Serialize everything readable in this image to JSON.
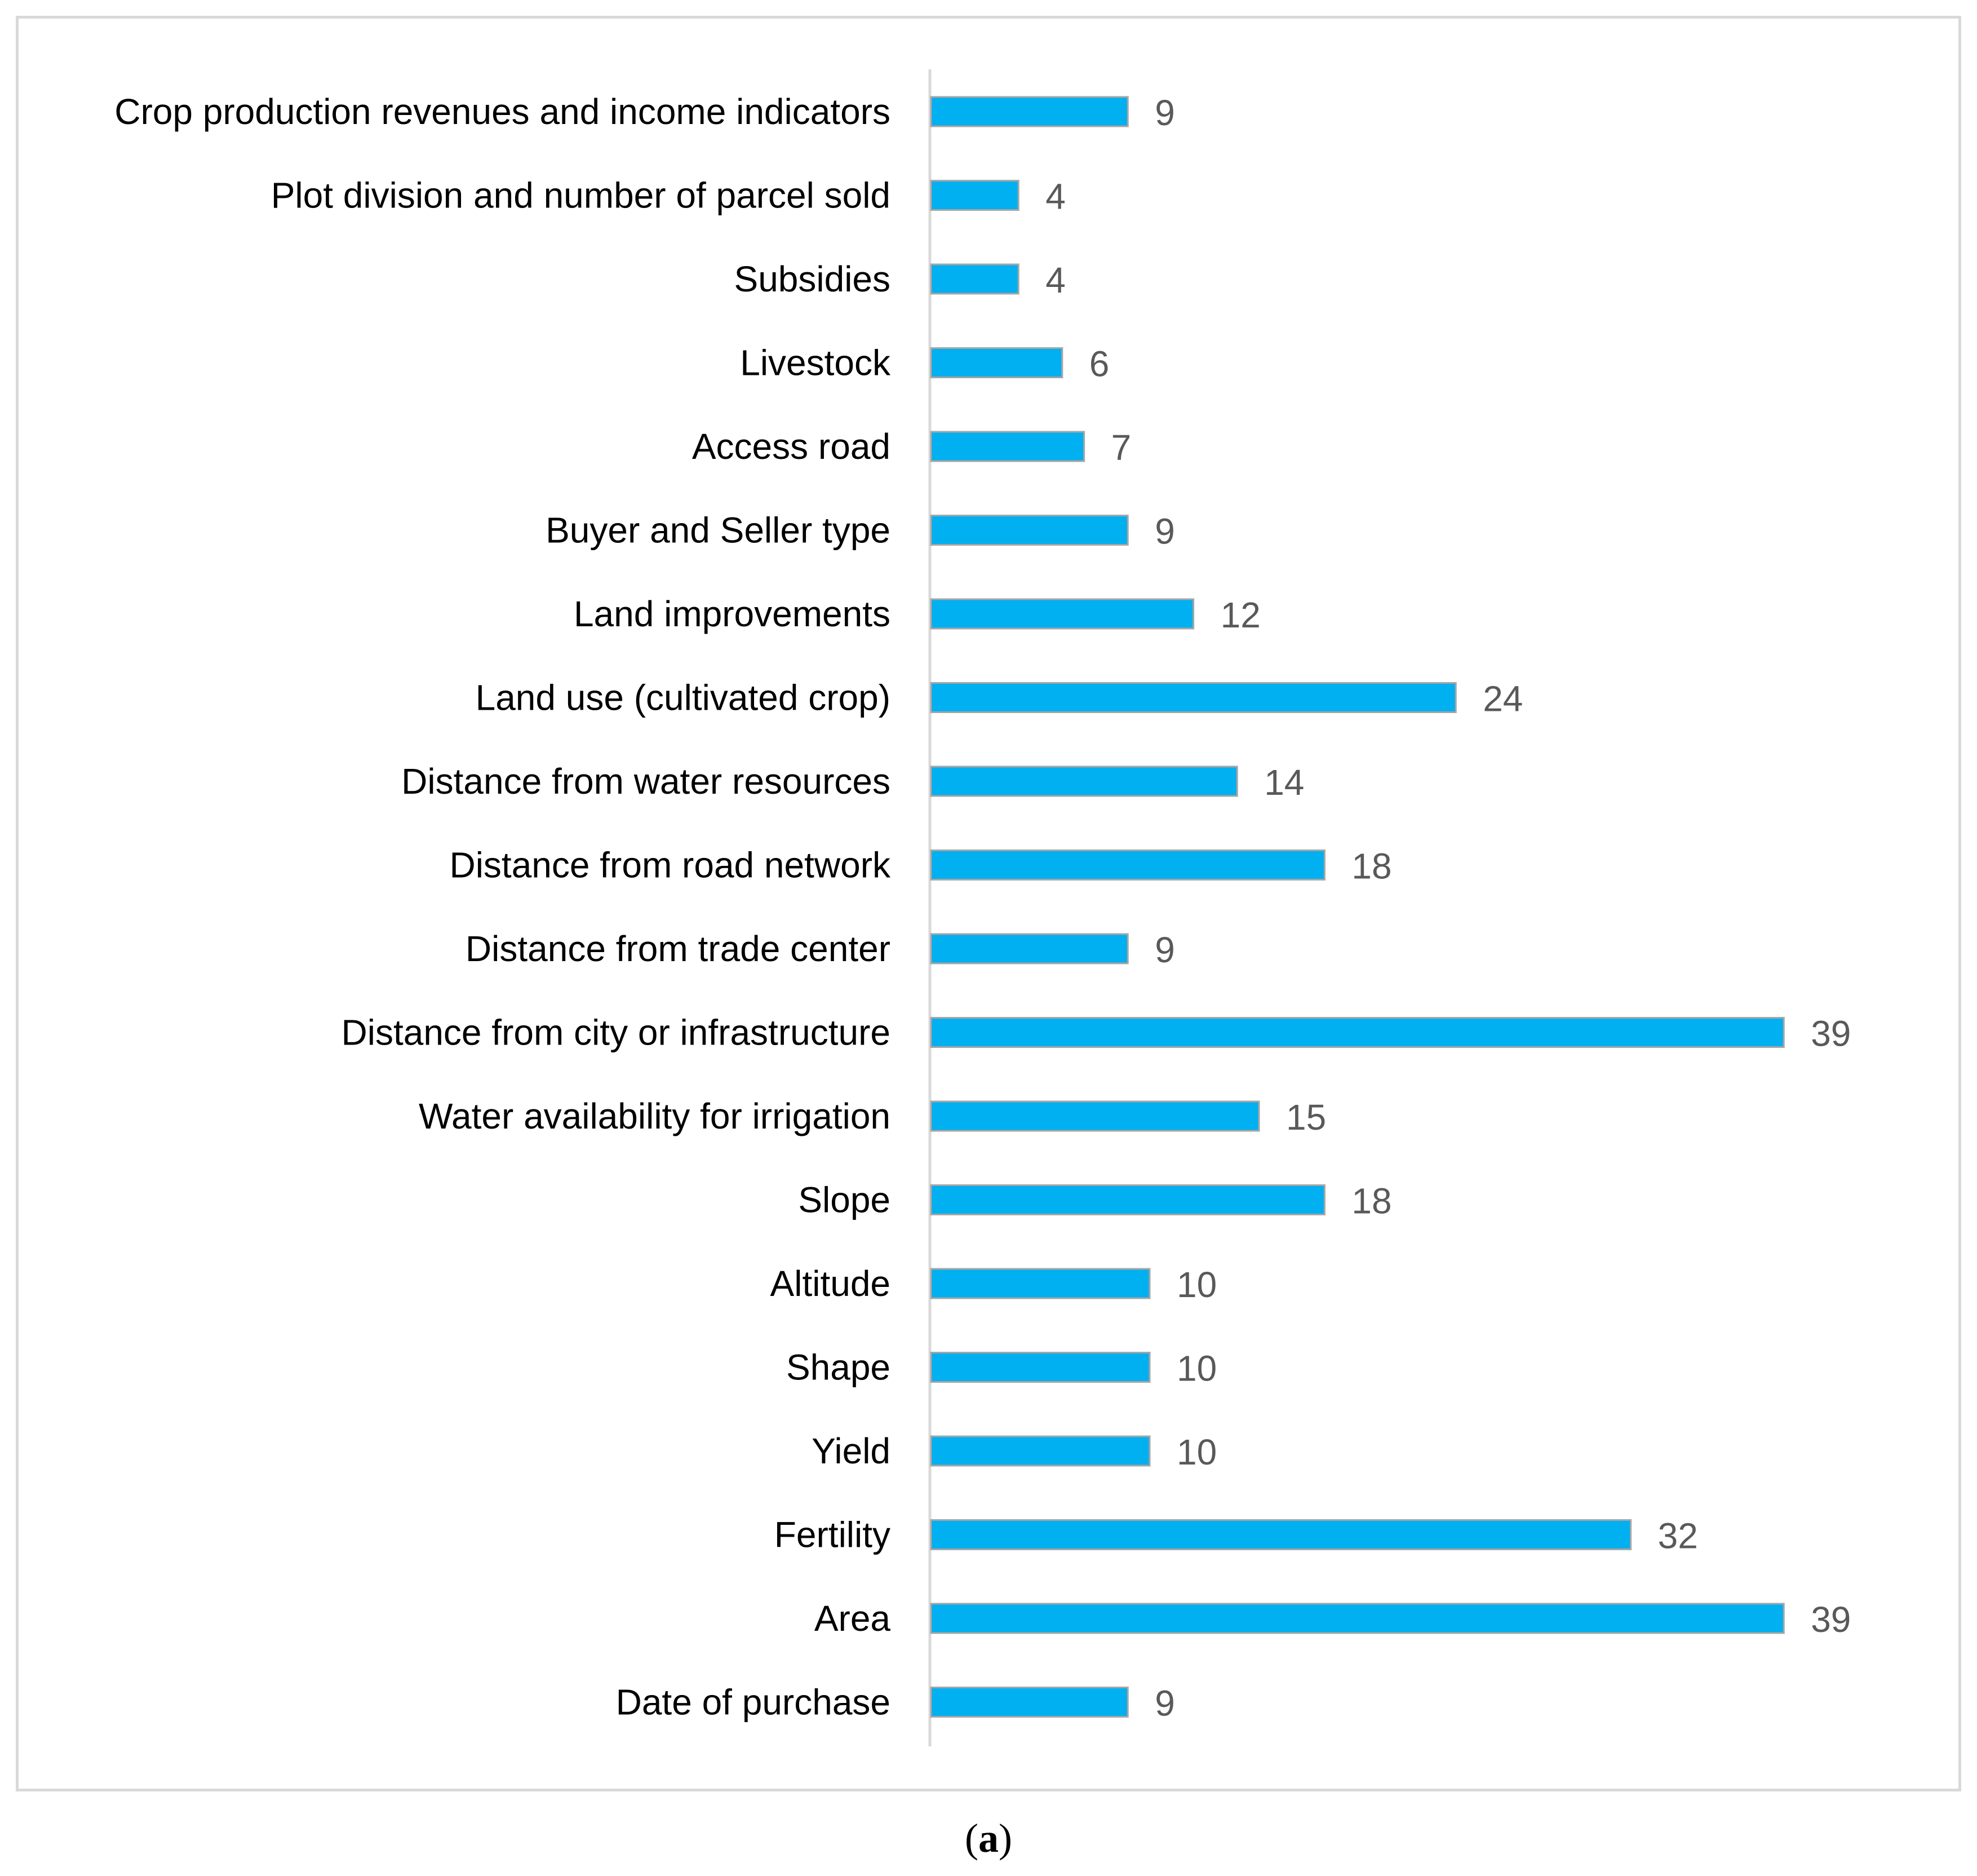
{
  "chart_data": {
    "type": "bar",
    "orientation": "horizontal",
    "categories": [
      "Crop production revenues and income indicators",
      "Plot division and number of parcel sold",
      "Subsidies",
      "Livestock",
      "Access road",
      "Buyer and Seller type",
      "Land improvements",
      "Land use (cultivated crop)",
      "Distance from water resources",
      "Distance from road network",
      "Distance from trade center",
      "Distance from city or infrastructure",
      "Water availability for irrigation",
      "Slope",
      "Altitude",
      "Shape",
      "Yield",
      "Fertility",
      "Area",
      "Date of purchase"
    ],
    "values": [
      9,
      4,
      4,
      6,
      7,
      9,
      12,
      24,
      14,
      18,
      9,
      39,
      15,
      18,
      10,
      10,
      10,
      32,
      39,
      9
    ],
    "title": "",
    "xlabel": "",
    "ylabel": "",
    "xlim": [
      0,
      39
    ],
    "grid": false,
    "legend": "none",
    "bar_color": "#00b0f0",
    "bar_edge_color": "#a6a6a6",
    "axis_color": "#d9d9d9"
  },
  "caption": {
    "open": "(",
    "letter": "a",
    "close": ")"
  }
}
